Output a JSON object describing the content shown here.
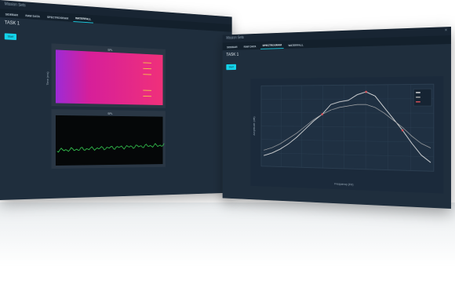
{
  "back_window": {
    "title": "Mission Sets",
    "tabs": [
      "SIDEBAR",
      "RAW DATA",
      "SPECTROGRAM",
      "WATERFALL"
    ],
    "active_tab": 3,
    "page_title": "TASK 1",
    "start_label": "Start",
    "waterfall": {
      "panel_title": "SPL",
      "ylabel": "Time (ms)"
    },
    "spectrum": {
      "panel_title": "SPL"
    }
  },
  "front_window": {
    "title": "Mission Sets",
    "tabs": [
      "SIDEBAR",
      "RAW DATA",
      "SPECTROGRAM",
      "WATERFALL"
    ],
    "active_tab": 2,
    "page_title": "TASK 1",
    "start_label": "Start"
  },
  "chart_data": {
    "type": "line",
    "xlabel": "Frequency (Hz)",
    "ylabel": "Amplitude (dB)",
    "series": [
      {
        "name": "",
        "values": [
          -42,
          -40,
          -37,
          -33,
          -28,
          -22,
          -16,
          -11,
          -4,
          -2,
          -1,
          3,
          5,
          2,
          -6,
          -14,
          -22,
          -31,
          -39,
          -44
        ]
      },
      {
        "name": "",
        "values": [
          -38,
          -36,
          -33,
          -29,
          -25,
          -20,
          -15,
          -11,
          -8,
          -6,
          -5,
          -4,
          -4,
          -6,
          -10,
          -15,
          -20,
          -26,
          -31,
          -34
        ]
      }
    ],
    "legend_entries": [
      "",
      "",
      ""
    ],
    "legend_colors": [
      "#e8e8e8",
      "#b0b0b0",
      "#e0525a"
    ]
  },
  "colors": {
    "accent": "#13d3ea",
    "window_bg": "#1f2e3d",
    "plot_bg": "#1b2a3b",
    "waterfall_bg": "#e0187a",
    "spectrum_line": "#3be05a",
    "marker": "#e0525a"
  }
}
